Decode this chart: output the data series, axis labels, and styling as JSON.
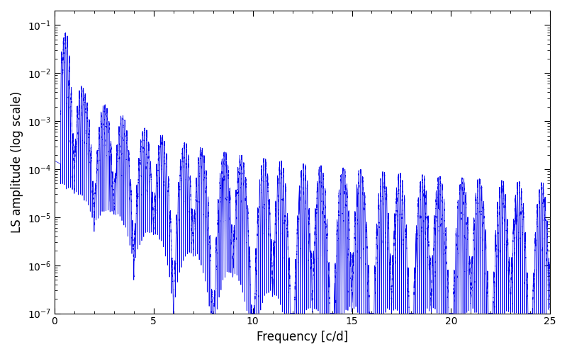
{
  "title": "",
  "xlabel": "Frequency [c/d]",
  "ylabel": "LS amplitude (log scale)",
  "xlim": [
    0,
    25
  ],
  "ylim": [
    1e-07,
    0.2
  ],
  "color": "#0000EE",
  "linewidth": 0.5,
  "figsize": [
    8.0,
    5.0
  ],
  "dpi": 100,
  "background_color": "#ffffff"
}
